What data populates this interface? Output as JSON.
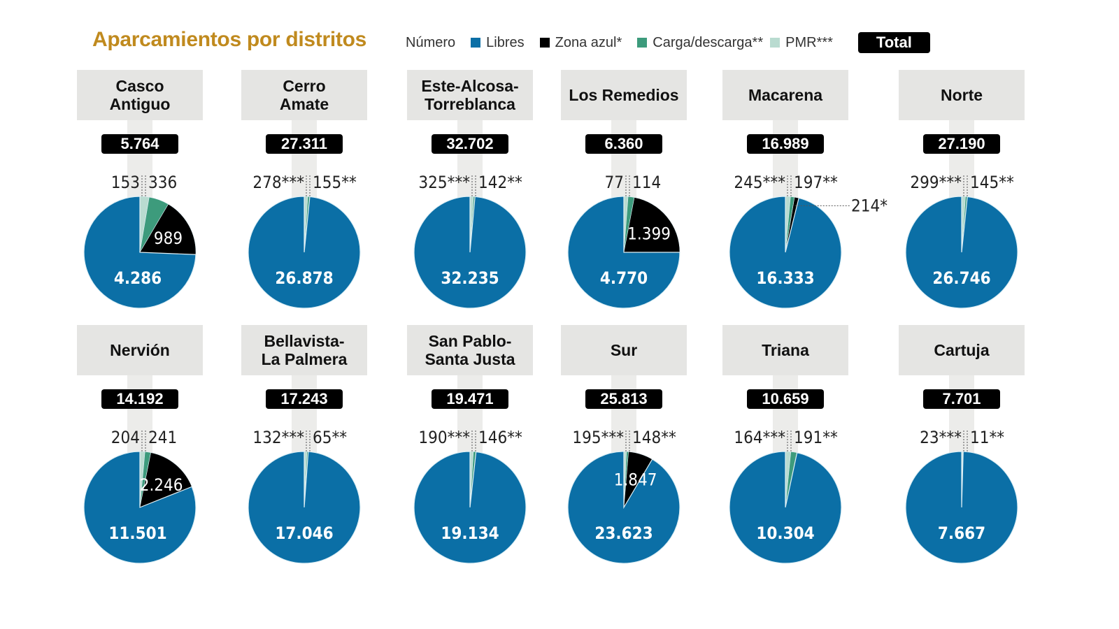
{
  "title": "Aparcamientos por distritos",
  "legend": {
    "numero": "Número",
    "items": [
      {
        "label": "Libres",
        "color": "#0b6fa6"
      },
      {
        "label": "Zona azul*",
        "color": "#000000"
      },
      {
        "label": "Carga/descarga**",
        "color": "#3d9b7c"
      },
      {
        "label": "PMR***",
        "color": "#b9dbd0"
      }
    ],
    "total": "Total"
  },
  "chart_data": {
    "type": "pie",
    "series_order": [
      "PMR***",
      "Carga/descarga**",
      "Zona azul*",
      "Libres"
    ],
    "districts": [
      {
        "name": "Casco\nAntiguo",
        "total": "5.764",
        "libres": 4286,
        "azul": 989,
        "carga": 336,
        "pmr": 153,
        "libres_label": "4.286",
        "azul_label": "989",
        "carga_label": "336",
        "pmr_label": "153"
      },
      {
        "name": "Cerro\nAmate",
        "total": "27.311",
        "libres": 26878,
        "azul": 0,
        "carga": 155,
        "pmr": 278,
        "libres_label": "26.878",
        "azul_label": "",
        "carga_label": "155**",
        "pmr_label": "278***"
      },
      {
        "name": "Este-Alcosa-\nTorreblanca",
        "total": "32.702",
        "libres": 32235,
        "azul": 0,
        "carga": 142,
        "pmr": 325,
        "libres_label": "32.235",
        "azul_label": "",
        "carga_label": "142**",
        "pmr_label": "325***"
      },
      {
        "name": "Los Remedios",
        "total": "6.360",
        "libres": 4770,
        "azul": 1399,
        "carga": 114,
        "pmr": 77,
        "libres_label": "4.770",
        "azul_label": "1.399",
        "carga_label": "114",
        "pmr_label": "77"
      },
      {
        "name": "Macarena",
        "total": "16.989",
        "libres": 16333,
        "azul": 214,
        "carga": 197,
        "pmr": 245,
        "libres_label": "16.333",
        "azul_label": "214*",
        "carga_label": "197**",
        "pmr_label": "245***"
      },
      {
        "name": "Norte",
        "total": "27.190",
        "libres": 26746,
        "azul": 0,
        "carga": 145,
        "pmr": 299,
        "libres_label": "26.746",
        "azul_label": "",
        "carga_label": "145**",
        "pmr_label": "299***"
      },
      {
        "name": "Nervión",
        "total": "14.192",
        "libres": 11501,
        "azul": 2246,
        "carga": 241,
        "pmr": 204,
        "libres_label": "11.501",
        "azul_label": "2.246",
        "carga_label": "241",
        "pmr_label": "204"
      },
      {
        "name": "Bellavista-\nLa Palmera",
        "total": "17.243",
        "libres": 17046,
        "azul": 0,
        "carga": 65,
        "pmr": 132,
        "libres_label": "17.046",
        "azul_label": "",
        "carga_label": "65**",
        "pmr_label": "132***"
      },
      {
        "name": "San Pablo-\nSanta Justa",
        "total": "19.471",
        "libres": 19134,
        "azul": 0,
        "carga": 146,
        "pmr": 190,
        "libres_label": "19.134",
        "azul_label": "",
        "carga_label": "146**",
        "pmr_label": "190***"
      },
      {
        "name": "Sur",
        "total": "25.813",
        "libres": 23623,
        "azul": 1847,
        "carga": 148,
        "pmr": 195,
        "libres_label": "23.623",
        "azul_label": "1.847",
        "carga_label": "148**",
        "pmr_label": "195***"
      },
      {
        "name": "Triana",
        "total": "10.659",
        "libres": 10304,
        "azul": 0,
        "carga": 191,
        "pmr": 164,
        "libres_label": "10.304",
        "azul_label": "",
        "carga_label": "191**",
        "pmr_label": "164***"
      },
      {
        "name": "Cartuja",
        "total": "7.701",
        "libres": 7667,
        "azul": 0,
        "carga": 11,
        "pmr": 23,
        "libres_label": "7.667",
        "azul_label": "",
        "carga_label": "11**",
        "pmr_label": "23***"
      }
    ]
  }
}
